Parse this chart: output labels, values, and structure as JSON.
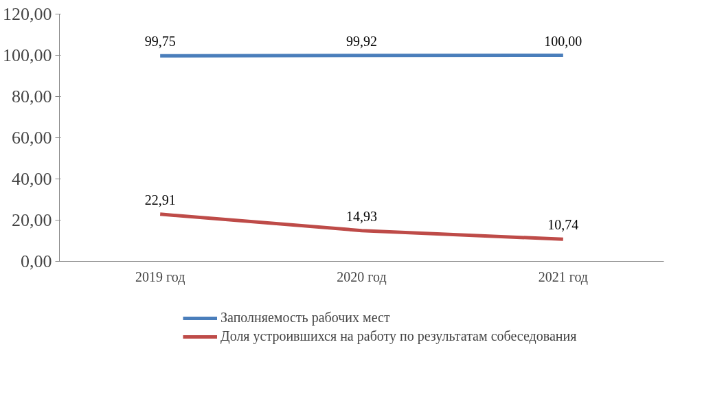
{
  "chart_data": {
    "type": "line",
    "categories": [
      "2019 год",
      "2020 год",
      "2021 год"
    ],
    "series": [
      {
        "name": "Заполняемость рабочих мест",
        "color": "#4a7ebb",
        "values": [
          99.75,
          99.92,
          100.0
        ],
        "value_labels": [
          "99,75",
          "99,92",
          "100,00"
        ]
      },
      {
        "name": "Доля устроившихся на работу по результатам собеседования",
        "color": "#be4b48",
        "values": [
          22.91,
          14.93,
          10.74
        ],
        "value_labels": [
          "22,91",
          "14,93",
          "10,74"
        ]
      }
    ],
    "ylim": [
      0,
      120
    ],
    "yticks": [
      {
        "value": 0,
        "label": "0,00"
      },
      {
        "value": 20,
        "label": "20,00"
      },
      {
        "value": 40,
        "label": "40,00"
      },
      {
        "value": 60,
        "label": "60,00"
      },
      {
        "value": 80,
        "label": "80,00"
      },
      {
        "value": 100,
        "label": "100,00"
      },
      {
        "value": 120,
        "label": "120,00"
      }
    ],
    "grid": false,
    "legend": "bottom",
    "marker": "none",
    "line_style": "solid"
  }
}
